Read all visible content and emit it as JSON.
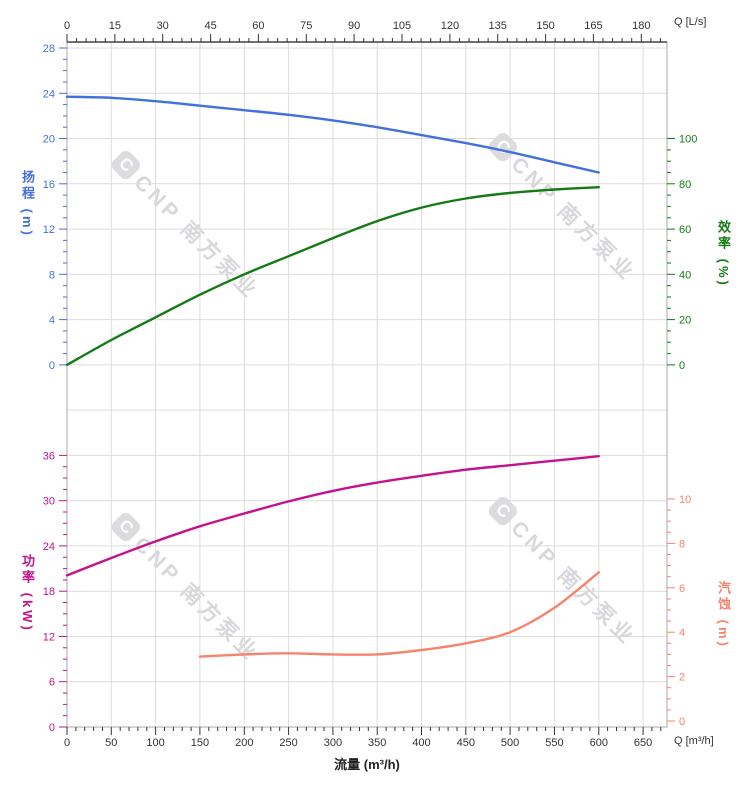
{
  "chart_data": {
    "type": "line",
    "title": "",
    "watermark": "CNP 南方泵业",
    "grid": true,
    "x": {
      "unit": "m³/h",
      "title": "流量 (m³/h)",
      "end_label": "Q [m³/h]",
      "major_ticks": [
        0,
        50,
        100,
        150,
        200,
        250,
        300,
        350,
        400,
        450,
        500,
        550,
        600,
        650
      ],
      "minor_step": 10,
      "range": [
        0,
        677
      ]
    },
    "x_top": {
      "unit": "L/s",
      "end_label": "Q [L/s]",
      "major_ticks": [
        0,
        15,
        30,
        45,
        60,
        75,
        90,
        105,
        120,
        135,
        150,
        165,
        180
      ],
      "minor_step": 3
    },
    "axes": {
      "head": {
        "title": "扬程 (m)",
        "color": "#4470dd",
        "ticks": [
          0,
          4,
          8,
          12,
          16,
          20,
          24,
          28
        ],
        "minor_step": 1,
        "range": [
          0,
          28
        ]
      },
      "efficiency": {
        "title": "效率 (%)",
        "color": "#157a15",
        "ticks": [
          0,
          20,
          40,
          60,
          80,
          100
        ],
        "minor_step": 5,
        "range": [
          0,
          100
        ]
      },
      "power": {
        "title": "功率 (kW)",
        "color": "#c4128c",
        "ticks": [
          0,
          6,
          12,
          18,
          24,
          30,
          36
        ],
        "minor_step": 1.5,
        "range": [
          0,
          36
        ]
      },
      "npsh": {
        "title": "汽蚀 (m)",
        "color": "#f5846e",
        "ticks": [
          0,
          2,
          4,
          6,
          8,
          10
        ],
        "minor_step": 0.5,
        "range": [
          0,
          10
        ]
      }
    },
    "series": [
      {
        "name": "head",
        "axis": "head",
        "color": "#4470dd",
        "x": [
          0,
          50,
          100,
          150,
          200,
          250,
          300,
          350,
          400,
          450,
          500,
          550,
          600
        ],
        "y": [
          23.7,
          23.6,
          23.3,
          22.9,
          22.5,
          22.1,
          21.6,
          21.0,
          20.3,
          19.6,
          18.8,
          17.9,
          17.0
        ]
      },
      {
        "name": "efficiency",
        "axis": "efficiency",
        "color": "#157a15",
        "x": [
          0,
          50,
          100,
          150,
          200,
          250,
          300,
          350,
          400,
          450,
          500,
          550,
          600
        ],
        "y": [
          0,
          11,
          21,
          31,
          40,
          48,
          56,
          63.5,
          69.5,
          73.5,
          76,
          77.5,
          78.5
        ]
      },
      {
        "name": "power",
        "axis": "power",
        "color": "#c4128c",
        "x": [
          0,
          50,
          100,
          150,
          200,
          250,
          300,
          350,
          400,
          450,
          500,
          550,
          600
        ],
        "y": [
          20.1,
          22.4,
          24.6,
          26.6,
          28.3,
          29.9,
          31.3,
          32.4,
          33.3,
          34.1,
          34.7,
          35.3,
          35.9
        ]
      },
      {
        "name": "npsh",
        "axis": "npsh",
        "color": "#f5846e",
        "x": [
          150,
          200,
          250,
          300,
          350,
          400,
          450,
          500,
          550,
          600
        ],
        "y": [
          2.9,
          3.0,
          3.05,
          3.0,
          3.0,
          3.2,
          3.5,
          4.0,
          5.1,
          6.7
        ]
      }
    ]
  }
}
